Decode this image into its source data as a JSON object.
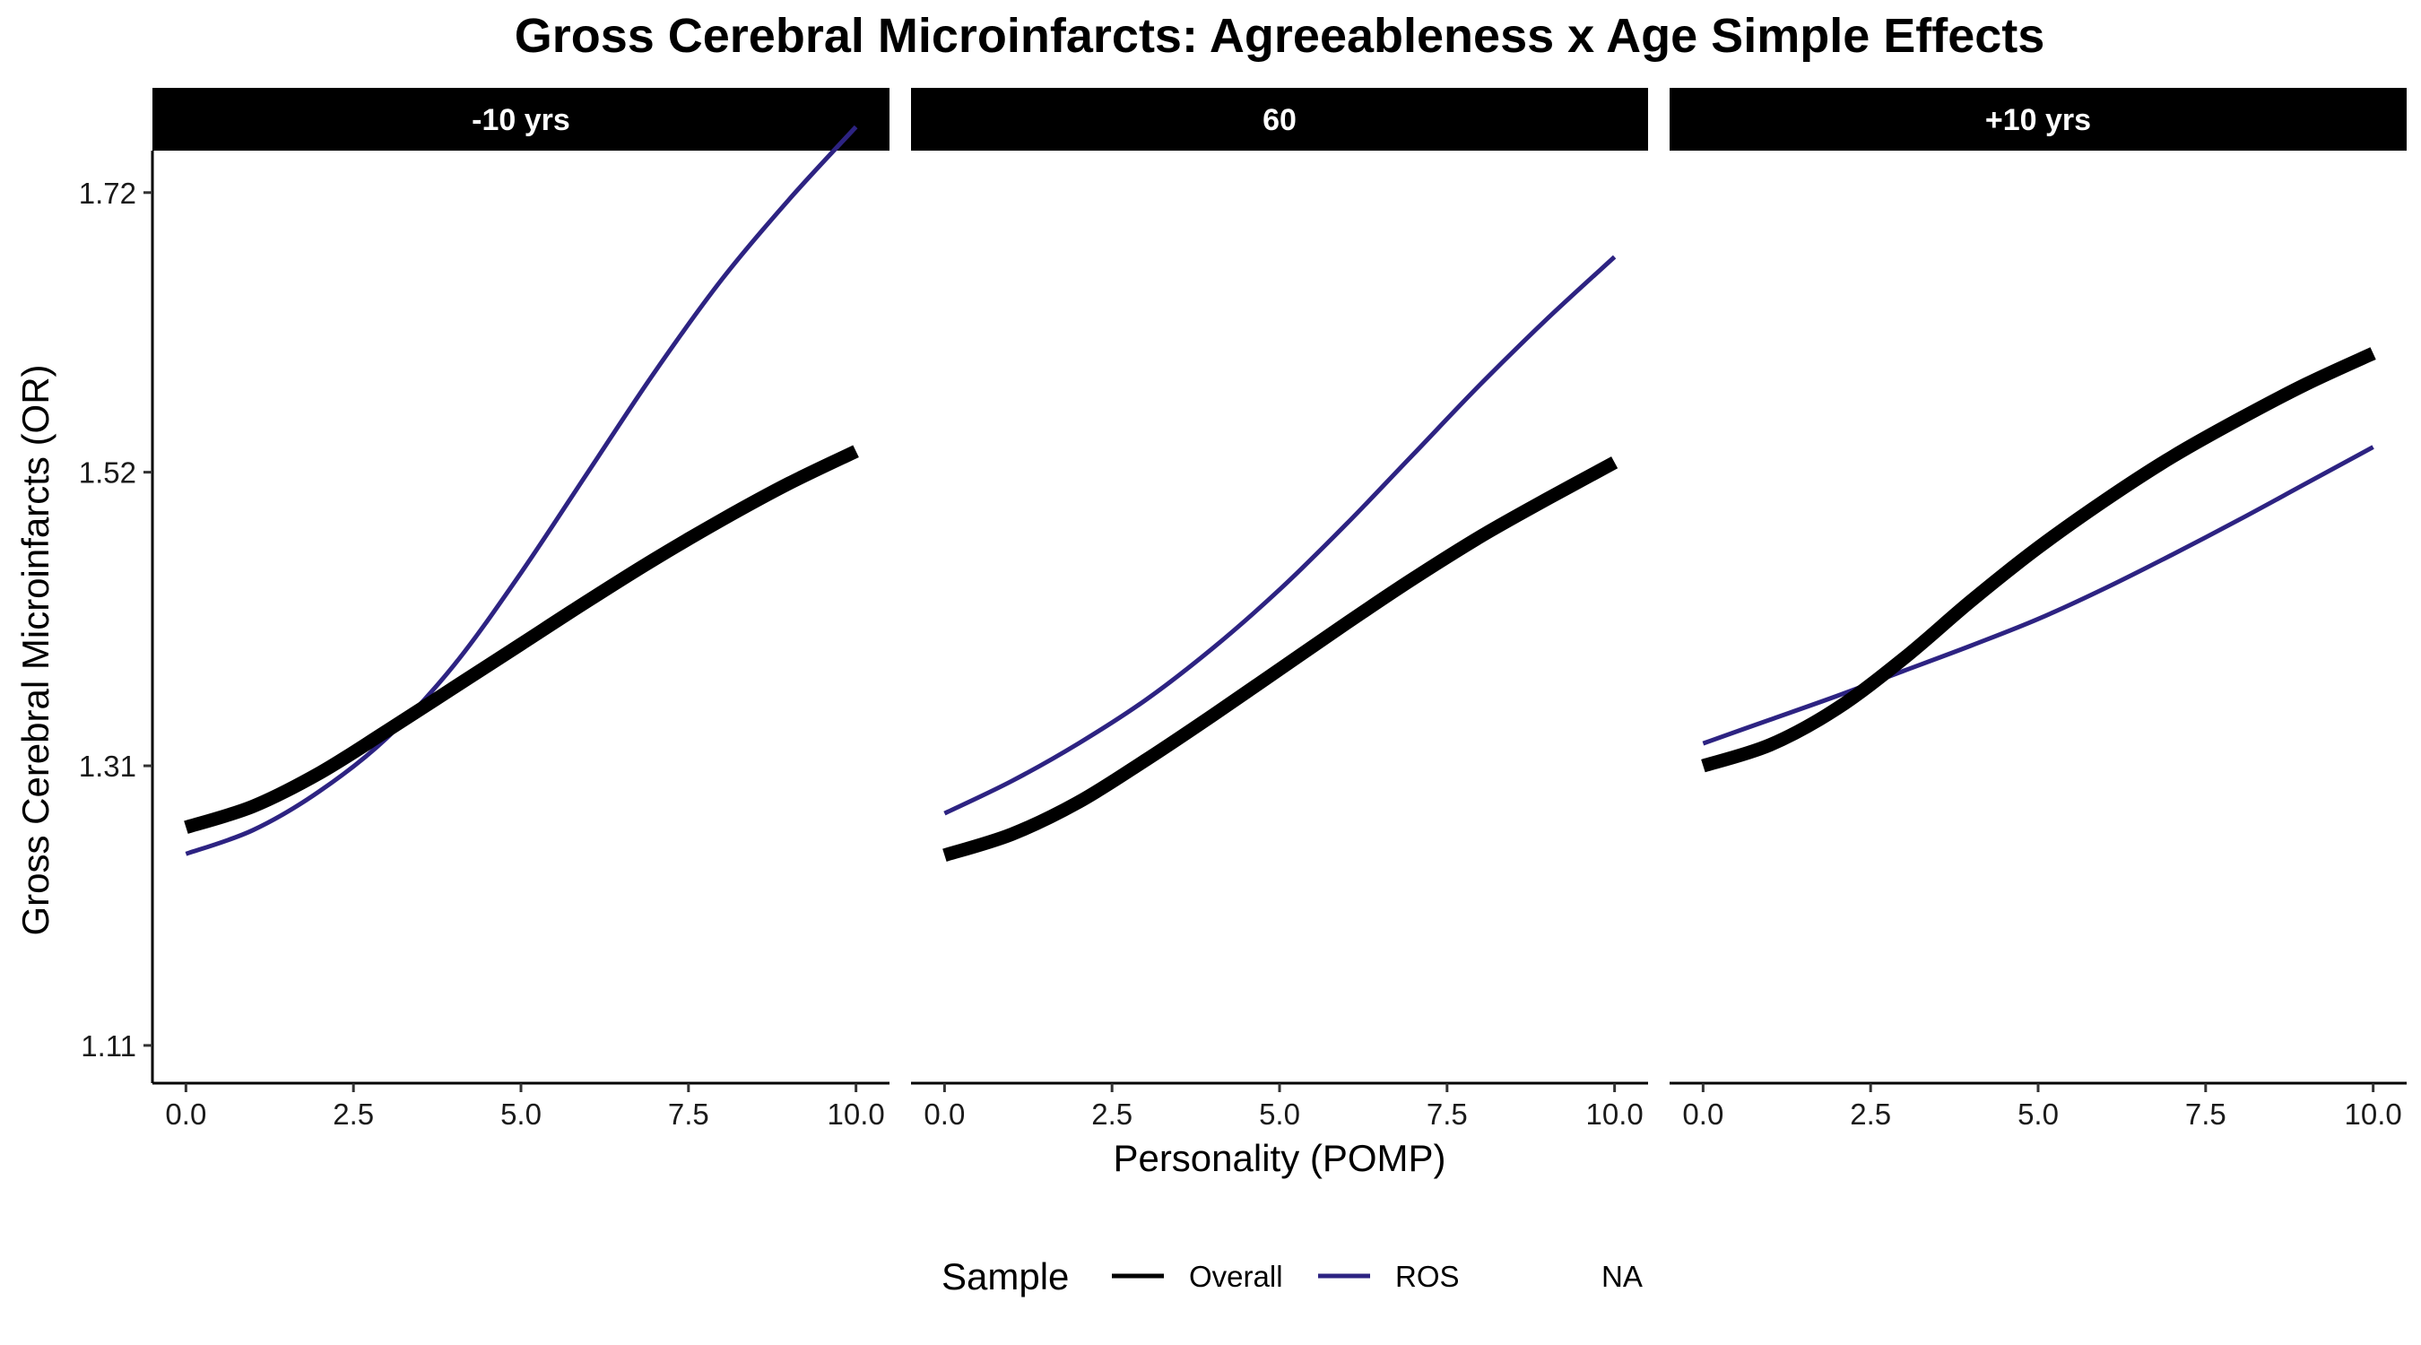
{
  "chart_data": {
    "type": "line",
    "title": "Gross Cerebral Microinfarcts: Agreeableness x Age Simple Effects",
    "xlabel": "Personality (POMP)",
    "ylabel": "Gross Cerebral Microinfarcts (OR)",
    "xlim": [
      -0.5,
      10.5
    ],
    "ylim": [
      1.083,
      1.75
    ],
    "x_ticks": [
      0,
      2.5,
      5,
      7.5,
      10
    ],
    "x_tick_labels": [
      "0.0",
      "2.5",
      "5.0",
      "7.5",
      "10.0"
    ],
    "y_ticks": [
      1.11,
      1.31,
      1.52,
      1.72
    ],
    "y_tick_labels": [
      "1.11",
      "1.31",
      "1.52",
      "1.72"
    ],
    "grid": false,
    "legend": {
      "title": "Sample",
      "position": "bottom",
      "entries": [
        {
          "label": "Overall",
          "color": "#000000"
        },
        {
          "label": "ROS",
          "color": "#2d2382"
        },
        {
          "label": "NA",
          "color": null
        }
      ]
    },
    "x": [
      0,
      1,
      2,
      3,
      4,
      5,
      6,
      7,
      8,
      9,
      10
    ],
    "panels": [
      {
        "label": "-10 yrs",
        "series": [
          {
            "name": "Overall",
            "color": "#000000",
            "values": [
              1.266,
              1.281,
              1.305,
              1.335,
              1.366,
              1.397,
              1.428,
              1.458,
              1.486,
              1.512,
              1.535
            ]
          },
          {
            "name": "ROS",
            "color": "#2d2382",
            "values": [
              1.247,
              1.264,
              1.292,
              1.33,
              1.382,
              1.448,
              1.52,
              1.592,
              1.658,
              1.715,
              1.767
            ]
          }
        ]
      },
      {
        "label": "60",
        "series": [
          {
            "name": "Overall",
            "color": "#000000",
            "values": [
              1.246,
              1.261,
              1.284,
              1.314,
              1.346,
              1.379,
              1.412,
              1.444,
              1.474,
              1.501,
              1.527
            ]
          },
          {
            "name": "ROS",
            "color": "#2d2382",
            "values": [
              1.276,
              1.299,
              1.326,
              1.357,
              1.394,
              1.436,
              1.483,
              1.533,
              1.583,
              1.63,
              1.674
            ]
          }
        ]
      },
      {
        "label": "+10 yrs",
        "series": [
          {
            "name": "Overall",
            "color": "#000000",
            "values": [
              1.31,
              1.325,
              1.351,
              1.387,
              1.428,
              1.466,
              1.5,
              1.531,
              1.558,
              1.583,
              1.605
            ]
          },
          {
            "name": "ROS",
            "color": "#2d2382",
            "values": [
              1.326,
              1.343,
              1.36,
              1.378,
              1.396,
              1.415,
              1.437,
              1.461,
              1.486,
              1.512,
              1.538
            ]
          }
        ]
      }
    ]
  }
}
